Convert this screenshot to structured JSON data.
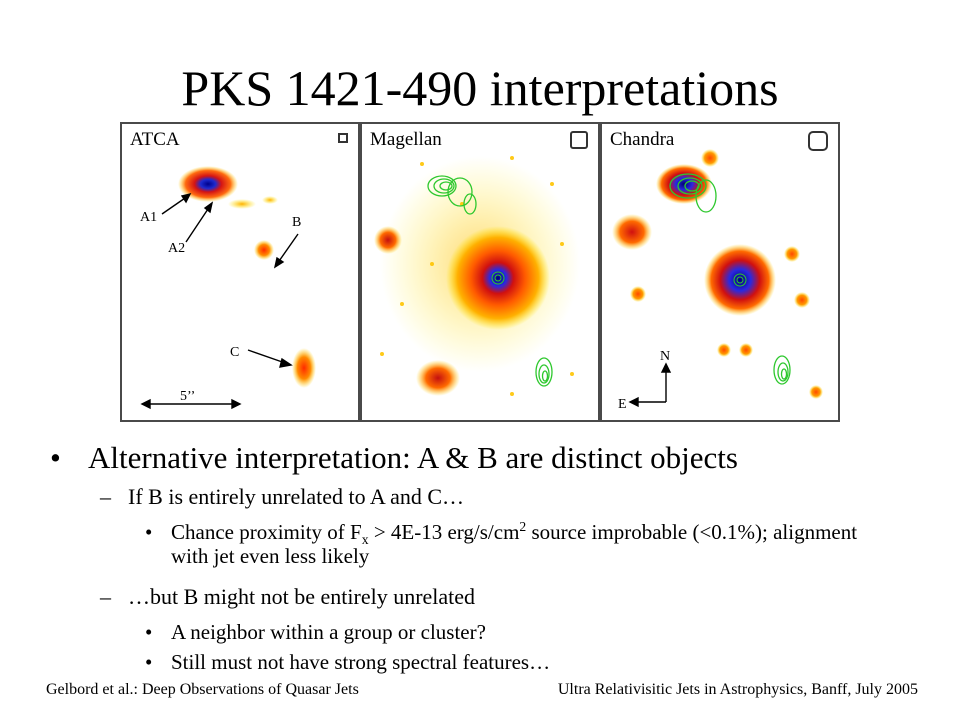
{
  "slide": {
    "title": "PKS 1421-490 interpretations",
    "panels": [
      {
        "label": "ATCA"
      },
      {
        "label": "Magellan"
      },
      {
        "label": "Chandra"
      }
    ],
    "annotations": {
      "a1": "A1",
      "a2": "A2",
      "b": "B",
      "c": "C",
      "scale": "5’’",
      "north": "N",
      "east": "E"
    },
    "bullets": {
      "main": "Alternative interpretation: A & B are distinct objects",
      "sub1": "If B is entirely unrelated to A and C…",
      "sub1_item_pre": "Chance proximity of F",
      "sub1_item_sub": "x",
      "sub1_item_mid": " > 4E-13 erg/s/cm",
      "sub1_item_sup": "2",
      "sub1_item_post": " source improbable (<0.1%); alignment with jet even less likely",
      "sub2": "…but B might not be entirely unrelated",
      "sub2_item1": "A neighbor within a group or cluster?",
      "sub2_item2": "Still must not have strong spectral features…"
    },
    "footer": {
      "left": "Gelbord et al.: Deep Observations of Quasar Jets",
      "right": "Ultra Relativisitic Jets in Astrophysics, Banff, July 2005"
    }
  }
}
